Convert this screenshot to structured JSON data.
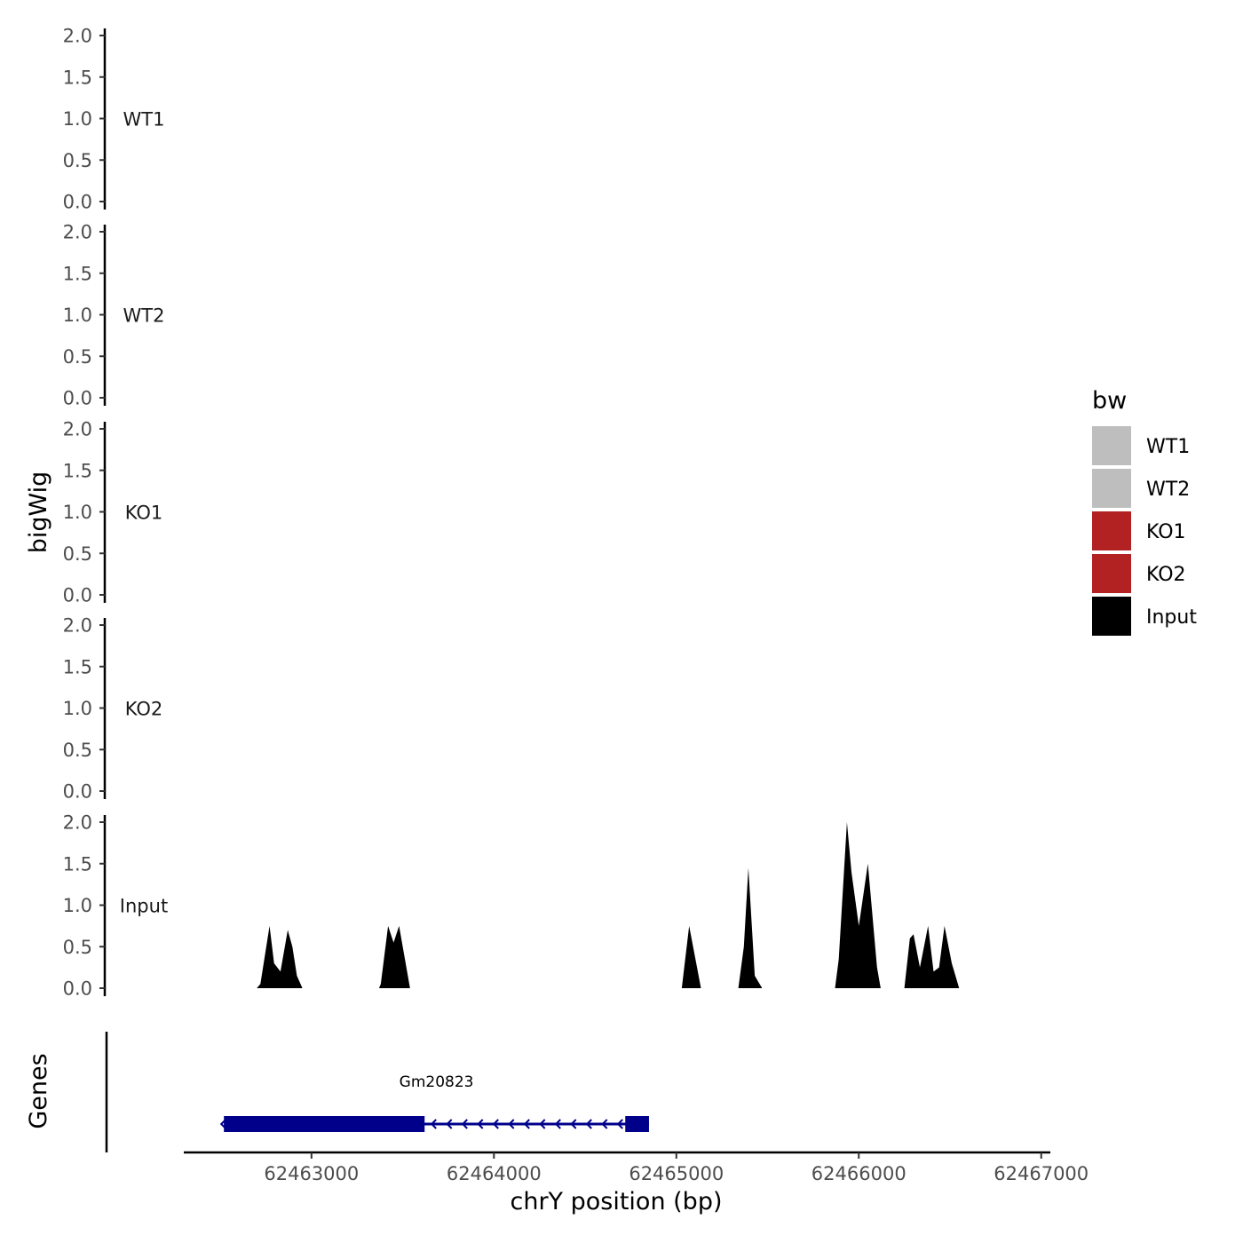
{
  "chart_data": {
    "type": "area",
    "ylabel": "bigWig",
    "genes_label": "Genes",
    "xlabel": "chrY position (bp)",
    "xlim": [
      62462300,
      62467050
    ],
    "ylim": [
      0,
      2
    ],
    "x_ticks": [
      62463000,
      62464000,
      62465000,
      62466000,
      62467000
    ],
    "x_tick_labels": [
      "62463000",
      "62464000",
      "62465000",
      "62466000",
      "62467000"
    ],
    "y_ticks": [
      0,
      0.5,
      1,
      1.5,
      2
    ],
    "y_tick_labels": [
      "0.0",
      "0.5",
      "1.0",
      "1.5",
      "2.0"
    ],
    "legend_title": "bw",
    "legend_position": "right",
    "tracks": [
      {
        "name": "WT1",
        "color": "#BEBEBE",
        "x": [],
        "values": []
      },
      {
        "name": "WT2",
        "color": "#BEBEBE",
        "x": [],
        "values": []
      },
      {
        "name": "KO1",
        "color": "#B22222",
        "x": [],
        "values": []
      },
      {
        "name": "KO2",
        "color": "#B22222",
        "x": [],
        "values": []
      },
      {
        "name": "Input",
        "color": "#000000",
        "x": [
          62462700,
          62462720,
          62462770,
          62462795,
          62462830,
          62462870,
          62462895,
          62462920,
          62462950,
          62463370,
          62463380,
          62463420,
          62463450,
          62463480,
          62463500,
          62463540,
          62465030,
          62465070,
          62465135,
          62465340,
          62465370,
          62465395,
          62465430,
          62465470,
          62465870,
          62465890,
          62465935,
          62465960,
          62466000,
          62466050,
          62466100,
          62466120,
          62466250,
          62466280,
          62466300,
          62466335,
          62466380,
          62466410,
          62466440,
          62466470,
          62466510,
          62466550
        ],
        "values": [
          0,
          0.05,
          0.75,
          0.3,
          0.2,
          0.7,
          0.5,
          0.15,
          0,
          0,
          0.05,
          0.75,
          0.55,
          0.75,
          0.5,
          0,
          0,
          0.75,
          0,
          0,
          0.5,
          1.45,
          0.15,
          0,
          0,
          0.35,
          2.0,
          1.4,
          0.75,
          1.5,
          0.25,
          0,
          0,
          0.6,
          0.65,
          0.25,
          0.75,
          0.2,
          0.25,
          0.75,
          0.3,
          0
        ]
      }
    ],
    "genes": [
      {
        "name": "Gm20823",
        "strand": "-",
        "start": 62462520,
        "end": 62464850,
        "exons": [
          [
            62462520,
            62463620
          ],
          [
            62464720,
            62464850
          ]
        ],
        "color": "#00008B"
      }
    ]
  }
}
